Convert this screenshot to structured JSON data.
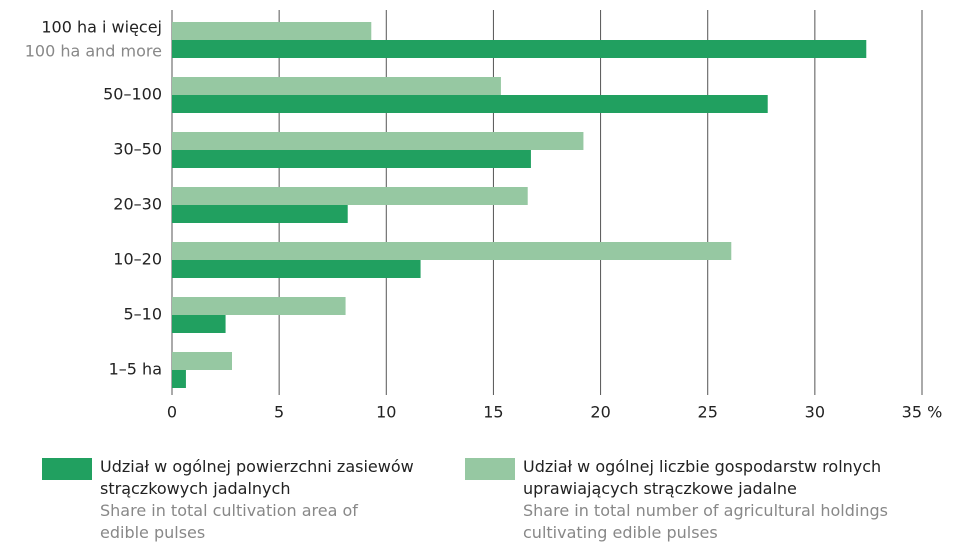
{
  "chart_data": {
    "type": "bar",
    "orientation": "horizontal",
    "categories": [
      {
        "label": "100 ha i więcej",
        "label_en": "100 ha and more"
      },
      "50–100",
      "30–50",
      "20–30",
      "10–20",
      "5–10",
      "1–5 ha"
    ],
    "series": [
      {
        "name": "Udział w ogólnej powierzchni zasiewów strączkowych jadalnych",
        "name_en": "Share in total cultivation area of edible pulses",
        "color": "#21a060",
        "values": [
          32.4,
          27.8,
          16.75,
          8.2,
          11.6,
          2.5,
          0.65
        ]
      },
      {
        "name": "Udział w ogólnej liczbie gospodarstw rolnych uprawiających strączkowe jadalne",
        "name_en": "Share in total number of agricultural holdings cultivating edible pulses",
        "color": "#96c8a2",
        "values": [
          9.3,
          15.35,
          19.2,
          16.6,
          26.1,
          8.1,
          2.8
        ]
      }
    ],
    "xlim": [
      0,
      35
    ],
    "xticks": [
      0,
      5,
      10,
      15,
      20,
      25,
      30,
      {
        "value": 35,
        "label": "35 %"
      }
    ],
    "grid": true
  }
}
